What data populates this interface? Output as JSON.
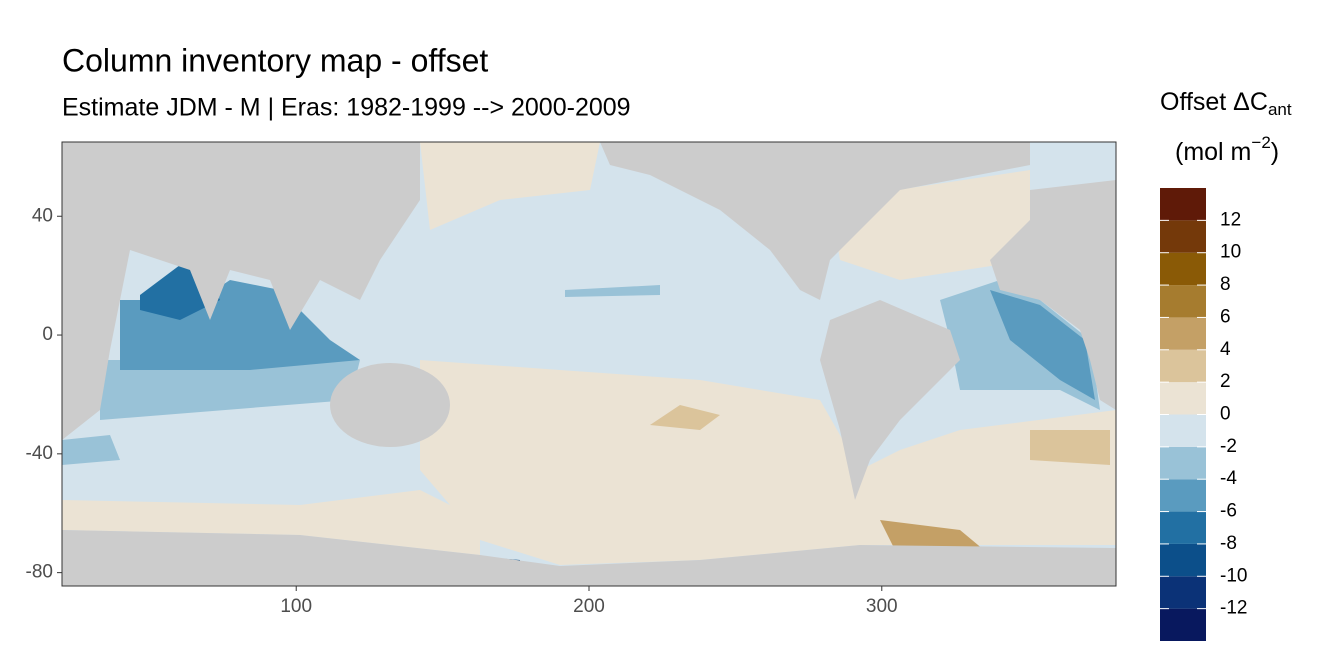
{
  "chart_data": {
    "type": "raster_map",
    "title": "Column inventory map - offset",
    "subtitle": "Estimate JDM - M | Eras: 1982-1999 --> 2000-2009",
    "xlim": [
      20,
      380
    ],
    "xticks": [
      100,
      200,
      300
    ],
    "ylim": [
      -84.5,
      65
    ],
    "yticks": [
      40,
      0,
      -40,
      -80
    ],
    "legend": {
      "title": "Offset ΔC",
      "title_sub": "ant",
      "unit": "(mol m",
      "unit_sup": "−2",
      "unit_end": ")",
      "breaks": [
        -14,
        -12,
        -10,
        -8,
        -6,
        -4,
        -2,
        0,
        2,
        4,
        6,
        8,
        10,
        12,
        14
      ],
      "colors": [
        "#08185e",
        "#0b3277",
        "#0c4f8a",
        "#2270a3",
        "#5a9bbf",
        "#99c2d7",
        "#d4e3ec",
        "#ebe3d4",
        "#dbc49b",
        "#c4a066",
        "#a67c2f",
        "#8a5a06",
        "#74390a",
        "#5f1a08"
      ],
      "ticks": [
        -12,
        -10,
        -8,
        -6,
        -4,
        -2,
        0,
        2,
        4,
        6,
        8,
        10,
        12
      ]
    }
  }
}
